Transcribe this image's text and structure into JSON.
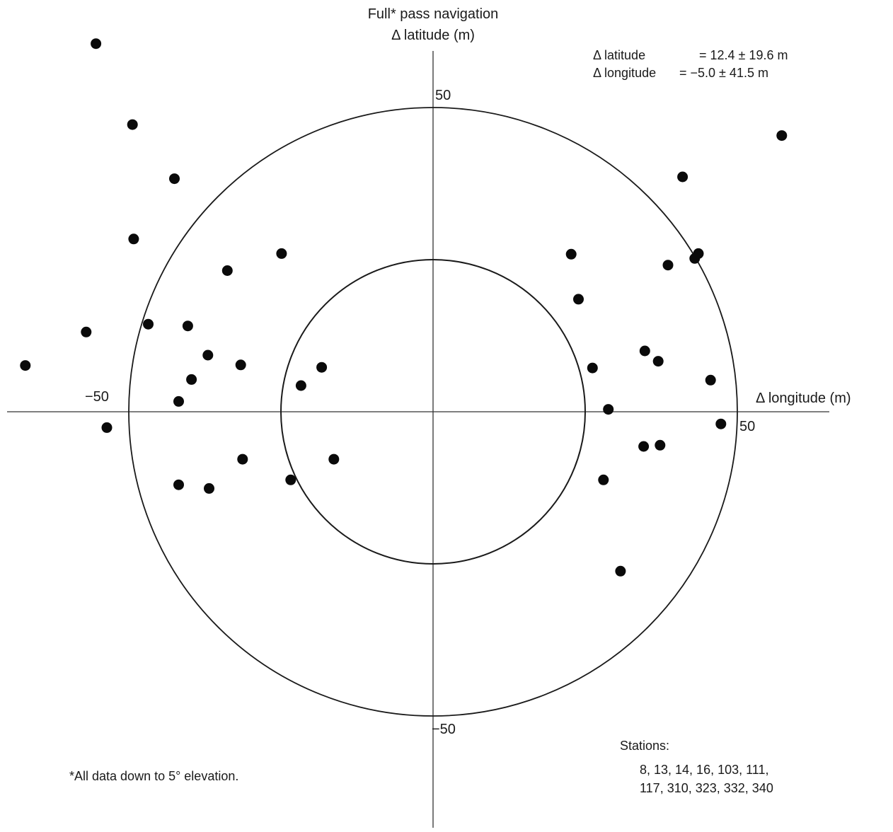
{
  "chart_data": {
    "type": "scatter",
    "title": "Full* pass navigation",
    "ylabel": "Δ latitude (m)",
    "xlabel": "Δ longitude (m)",
    "xlim": [
      -67,
      65
    ],
    "ylim": [
      -67,
      60
    ],
    "grid": false,
    "rings": [
      25,
      50
    ],
    "ticks": {
      "x_neg": "−50",
      "x_pos": "50",
      "y_pos": "50",
      "y_neg": "−50"
    },
    "stats": {
      "line1_label": "Δ latitude",
      "line1_value": "= 12.4 ± 19.6 m",
      "line2_label": "Δ longitude",
      "line2_value": "= −5.0 ± 41.5 m"
    },
    "footnote": "*All data down to 5° elevation.",
    "stations": {
      "label": "Stations:",
      "line1": "8, 13, 14, 16, 103, 111,",
      "line2": "117, 310, 323, 332, 340"
    },
    "points": [
      {
        "x": -55.4,
        "y": 60.5
      },
      {
        "x": -49.4,
        "y": 47.2
      },
      {
        "x": -42.5,
        "y": 38.3
      },
      {
        "x": -49.2,
        "y": 28.4
      },
      {
        "x": -33.8,
        "y": 23.2
      },
      {
        "x": -24.9,
        "y": 26.0
      },
      {
        "x": -57.0,
        "y": 13.1
      },
      {
        "x": -46.8,
        "y": 14.4
      },
      {
        "x": -40.3,
        "y": 14.1
      },
      {
        "x": -67.0,
        "y": 7.6
      },
      {
        "x": -37.0,
        "y": 9.3
      },
      {
        "x": -31.6,
        "y": 7.7
      },
      {
        "x": -39.7,
        "y": 5.3
      },
      {
        "x": -41.8,
        "y": 1.7
      },
      {
        "x": -53.6,
        "y": -2.6
      },
      {
        "x": -21.7,
        "y": 4.3
      },
      {
        "x": -18.3,
        "y": 7.3
      },
      {
        "x": -31.3,
        "y": -7.8
      },
      {
        "x": -41.8,
        "y": -12.0
      },
      {
        "x": -36.8,
        "y": -12.6
      },
      {
        "x": -23.4,
        "y": -11.2
      },
      {
        "x": -16.3,
        "y": -7.8
      },
      {
        "x": 57.3,
        "y": 45.4
      },
      {
        "x": 41.0,
        "y": 38.6
      },
      {
        "x": 43.6,
        "y": 26.0
      },
      {
        "x": 43.0,
        "y": 25.2
      },
      {
        "x": 38.6,
        "y": 24.1
      },
      {
        "x": 22.7,
        "y": 25.9
      },
      {
        "x": 23.9,
        "y": 18.5
      },
      {
        "x": 34.8,
        "y": 10.0
      },
      {
        "x": 37.0,
        "y": 8.3
      },
      {
        "x": 26.2,
        "y": 7.2
      },
      {
        "x": 45.6,
        "y": 5.2
      },
      {
        "x": 28.8,
        "y": 0.4
      },
      {
        "x": 47.3,
        "y": -2.0
      },
      {
        "x": 34.6,
        "y": -5.7
      },
      {
        "x": 37.3,
        "y": -5.5
      },
      {
        "x": 28.0,
        "y": -11.2
      },
      {
        "x": 30.8,
        "y": -26.2
      }
    ]
  }
}
